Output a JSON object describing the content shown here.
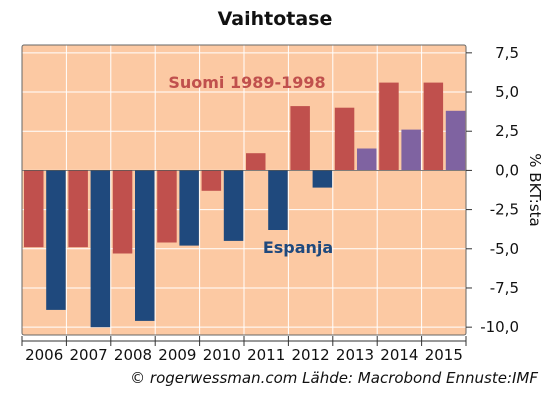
{
  "title": "Vaihtotase",
  "footer": "© rogerwessman.com Lähde: Macrobond Ennuste:IMF",
  "colors": {
    "plot_bg": "#fcc9a3",
    "suomi": "#c0504d",
    "espanja": "#1f497d",
    "suomi_ennuste": "#7f63a1",
    "grid": "#ffffff"
  },
  "chart_data": {
    "type": "bar",
    "title": "Vaihtotase",
    "ylabel": "% BKT:sta",
    "ylim": [
      -10.5,
      8
    ],
    "yticks": [
      7.5,
      5.0,
      2.5,
      0.0,
      -2.5,
      -5.0,
      -7.5,
      -10.0
    ],
    "ytick_labels": [
      "7,5",
      "5,0",
      "2,5",
      "0,0",
      "-2,5",
      "-5,0",
      "-7,5",
      "-10,0"
    ],
    "categories": [
      "2006",
      "2007",
      "2008",
      "2009",
      "2010",
      "2011",
      "2012",
      "2013",
      "2014",
      "2015"
    ],
    "grid": true,
    "series": [
      {
        "name": "Suomi 1989-1998",
        "values": [
          -4.9,
          -4.9,
          -5.3,
          -4.6,
          -1.3,
          1.1,
          4.1,
          4.0,
          5.6,
          5.6
        ],
        "forecast_from_index": 8
      },
      {
        "name": "Espanja",
        "values": [
          -8.9,
          -10.0,
          -9.6,
          -4.8,
          -4.5,
          -3.8,
          -1.1,
          1.4,
          2.6,
          3.8
        ],
        "forecast_from_index": 7
      }
    ],
    "annotations": [
      {
        "text": "Suomi 1989-1998",
        "series": "Suomi 1989-1998"
      },
      {
        "text": "Espanja",
        "series": "Espanja"
      }
    ]
  }
}
